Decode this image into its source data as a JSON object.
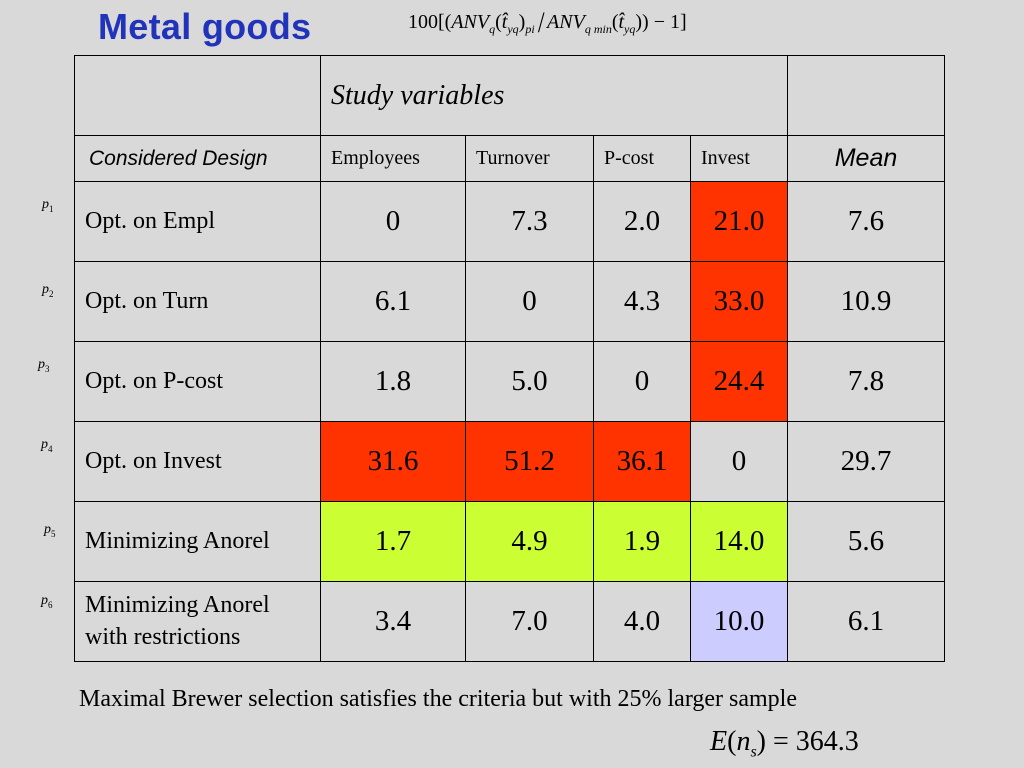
{
  "title": "Metal goods",
  "formula": {
    "lead": "100[(",
    "anv": "ANV",
    "sub_q": "q",
    "paren_open": "(",
    "t_hat": "t̂",
    "sub_yq": "yq",
    "paren_close": ")",
    "sub_pi": "pi",
    "anv2": "ANV",
    "sub_qmin": "q min",
    "paren_open2": "(",
    "t_hat2": "t̂",
    "sub_yq2": "yq",
    "tail": ")) − 1]"
  },
  "table": {
    "study_variables": "Study variables",
    "considered_design": "Considered Design",
    "columns": [
      "Employees",
      "Turnover",
      "P-cost",
      "Invest"
    ],
    "mean_header": "Mean",
    "rows": [
      {
        "p": "p",
        "p_sub": "1",
        "label": "Opt. on Empl",
        "values": [
          "0",
          "7.3",
          "2.0",
          "21.0"
        ],
        "mean": "7.6"
      },
      {
        "p": "p",
        "p_sub": "2",
        "label": "Opt. on Turn",
        "values": [
          "6.1",
          "0",
          "4.3",
          "33.0"
        ],
        "mean": "10.9"
      },
      {
        "p": "p",
        "p_sub": "3",
        "label": "Opt. on P-cost",
        "values": [
          "1.8",
          "5.0",
          "0",
          "24.4"
        ],
        "mean": "7.8"
      },
      {
        "p": "p",
        "p_sub": "4",
        "label": "Opt. on Invest",
        "values": [
          "31.6",
          "51.2",
          "36.1",
          "0"
        ],
        "mean": "29.7"
      },
      {
        "p": "p",
        "p_sub": "5",
        "label": "Minimizing Anorel",
        "values": [
          "1.7",
          "4.9",
          "1.9",
          "14.0"
        ],
        "mean": "5.6"
      },
      {
        "p": "p",
        "p_sub": "6",
        "label_line1": "Minimizing Anorel",
        "label_line2": "with restrictions",
        "values": [
          "3.4",
          "7.0",
          "4.0",
          "10.0"
        ],
        "mean": "6.1"
      }
    ]
  },
  "colors": {
    "red": "#ff3300",
    "lime": "#ccff33",
    "lavender": "#ccccff",
    "title_blue": "#2233bb",
    "background": "#d9d9d9"
  },
  "note": "Maximal Brewer selection satisfies the criteria but with 25% larger sample",
  "expectation": {
    "e": "E",
    "open": "(",
    "n": "n",
    "sub_s": "s",
    "rest": ") = 364.3"
  }
}
